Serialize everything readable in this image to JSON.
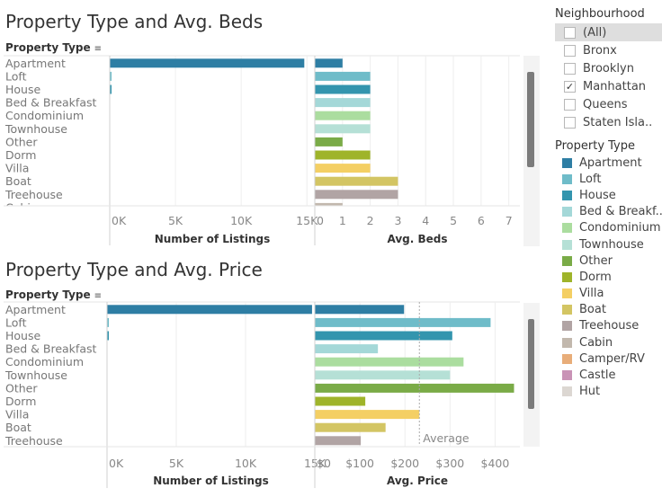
{
  "sheet1": {
    "title": "Property Type and Avg. Beds",
    "row_header": "Property Type"
  },
  "sheet2": {
    "title": "Property Type and Avg. Price",
    "row_header": "Property Type"
  },
  "filter": {
    "title": "Neighbourhood",
    "items": [
      {
        "label": "(All)",
        "checked": false,
        "highlight": true
      },
      {
        "label": "Bronx",
        "checked": false,
        "highlight": false
      },
      {
        "label": "Brooklyn",
        "checked": false,
        "highlight": false
      },
      {
        "label": "Manhattan",
        "checked": true,
        "highlight": false
      },
      {
        "label": "Queens",
        "checked": false,
        "highlight": false
      },
      {
        "label": "Staten Isla..",
        "checked": false,
        "highlight": false
      }
    ]
  },
  "legend": {
    "title": "Property Type",
    "items": [
      {
        "label": "Apartment",
        "color": "#2e7ea4"
      },
      {
        "label": "Loft",
        "color": "#6fbcc9"
      },
      {
        "label": "House",
        "color": "#3395ae"
      },
      {
        "label": "Bed & Breakf..",
        "color": "#a4d8d8"
      },
      {
        "label": "Condominium",
        "color": "#abdd9f"
      },
      {
        "label": "Townhouse",
        "color": "#b5e0d6"
      },
      {
        "label": "Other",
        "color": "#7aab47"
      },
      {
        "label": "Dorm",
        "color": "#9fb42a"
      },
      {
        "label": "Villa",
        "color": "#f4cf64"
      },
      {
        "label": "Boat",
        "color": "#d3c563"
      },
      {
        "label": "Treehouse",
        "color": "#b1a4a4"
      },
      {
        "label": "Cabin",
        "color": "#c2b8ad"
      },
      {
        "label": "Camper/RV",
        "color": "#e8ad79"
      },
      {
        "label": "Castle",
        "color": "#c993b6"
      },
      {
        "label": "Hut",
        "color": "#dcd7d2"
      }
    ]
  },
  "chart_data": [
    {
      "type": "bar",
      "orientation": "horizontal",
      "categories": [
        "Apartment",
        "Loft",
        "House",
        "Bed & Breakfast",
        "Condominium",
        "Townhouse",
        "Other",
        "Dorm",
        "Villa",
        "Boat",
        "Treehouse",
        "Cabin"
      ],
      "visible_label_count": 11,
      "partial_last_label": "Cabin",
      "colors": [
        "#2e7ea4",
        "#6fbcc9",
        "#3395ae",
        "#a4d8d8",
        "#abdd9f",
        "#b5e0d6",
        "#7aab47",
        "#9fb42a",
        "#f4cf64",
        "#d3c563",
        "#b1a4a4",
        "#c2b8ad"
      ],
      "panes": [
        {
          "xlabel": "Number of Listings",
          "values": [
            14800,
            120,
            120,
            0,
            0,
            0,
            0,
            0,
            0,
            0,
            0,
            0
          ],
          "xlim": [
            0,
            15600
          ],
          "ticks": [
            0,
            5000,
            10000,
            15000
          ],
          "tick_labels": [
            "0K",
            "5K",
            "10K",
            "15K"
          ]
        },
        {
          "xlabel": "Avg. Beds",
          "values": [
            1.0,
            2.0,
            2.0,
            2.0,
            2.0,
            2.0,
            1.0,
            2.0,
            2.0,
            3.0,
            3.0,
            1.0
          ],
          "xlim": [
            0,
            7.4
          ],
          "ticks": [
            0,
            1,
            2,
            3,
            4,
            5,
            6,
            7
          ],
          "tick_labels": [
            "0",
            "1",
            "2",
            "3",
            "4",
            "5",
            "6",
            "7"
          ]
        }
      ],
      "grid": true
    },
    {
      "type": "bar",
      "orientation": "horizontal",
      "categories": [
        "Apartment",
        "Loft",
        "House",
        "Bed & Breakfast",
        "Condominium",
        "Townhouse",
        "Other",
        "Dorm",
        "Villa",
        "Boat",
        "Treehouse"
      ],
      "visible_label_count": 11,
      "partial_last_label": "",
      "colors": [
        "#2e7ea4",
        "#6fbcc9",
        "#3395ae",
        "#a4d8d8",
        "#abdd9f",
        "#b5e0d6",
        "#7aab47",
        "#9fb42a",
        "#f4cf64",
        "#d3c563",
        "#b1a4a4"
      ],
      "panes": [
        {
          "xlabel": "Number of Listings",
          "values": [
            14800,
            120,
            120,
            0,
            0,
            0,
            0,
            0,
            0,
            0,
            0
          ],
          "xlim": [
            0,
            15000
          ],
          "ticks": [
            0,
            5000,
            10000,
            15000
          ],
          "tick_labels": [
            "0K",
            "5K",
            "10K",
            "15K"
          ]
        },
        {
          "xlabel": "Avg. Price",
          "values": [
            198,
            390,
            305,
            140,
            330,
            300,
            442,
            112,
            232,
            157,
            102
          ],
          "xlim": [
            0,
            455
          ],
          "ticks": [
            0,
            100,
            200,
            300,
            400
          ],
          "tick_labels": [
            "$0",
            "$100",
            "$200",
            "$300",
            "$400"
          ],
          "reference_line": {
            "label": "Average",
            "value": 232
          }
        }
      ],
      "grid": true
    }
  ]
}
